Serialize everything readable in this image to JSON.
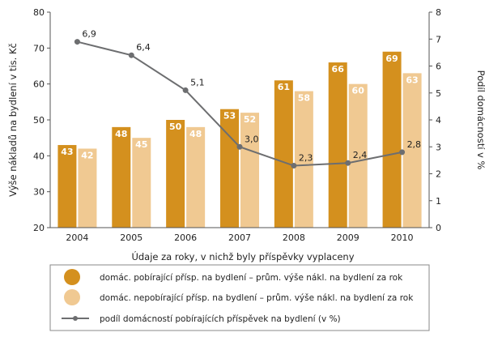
{
  "chart_data": {
    "type": "bar",
    "categories": [
      "2004",
      "2005",
      "2006",
      "2007",
      "2008",
      "2009",
      "2010"
    ],
    "series": [
      {
        "name": "domác. pobírající přísp. na bydlení – prům. výše nákl. na bydlení za rok",
        "type": "bar",
        "axis": "left",
        "color": "#d4901e",
        "values": [
          43,
          48,
          50,
          53,
          61,
          66,
          69
        ],
        "labels": [
          "43",
          "48",
          "50",
          "53",
          "61",
          "66",
          "69"
        ]
      },
      {
        "name": "domác. nepobírající přísp. na bydlení – prům. výše nákl. na bydlení za rok",
        "type": "bar",
        "axis": "left",
        "color": "#f0c992",
        "values": [
          42,
          45,
          48,
          52,
          58,
          60,
          63
        ],
        "labels": [
          "42",
          "45",
          "48",
          "52",
          "58",
          "60",
          "63"
        ]
      },
      {
        "name": "podíl domácností pobírajících příspěvek na bydlení (v %)",
        "type": "line",
        "axis": "right",
        "color": "#6d6e70",
        "values": [
          6.9,
          6.4,
          5.1,
          3.0,
          2.3,
          2.4,
          2.8
        ],
        "labels": [
          "6,9",
          "6,4",
          "5,1",
          "3,0",
          "2,3",
          "2,4",
          "2,8"
        ]
      }
    ],
    "xlabel": "Údaje za roky, v nichž byly příspěvky vyplaceny",
    "ylabel": "Výše nákladů na bydlení v tis. Kč",
    "y2label": "Podíl domácností v %",
    "ylim": [
      20,
      80
    ],
    "y2lim": [
      0,
      8
    ],
    "yticks": [
      "20",
      "30",
      "40",
      "50",
      "60",
      "70",
      "80"
    ],
    "y2ticks": [
      "0",
      "1",
      "2",
      "3",
      "4",
      "5",
      "6",
      "7",
      "8"
    ],
    "grid": false,
    "legend_position": "bottom"
  }
}
